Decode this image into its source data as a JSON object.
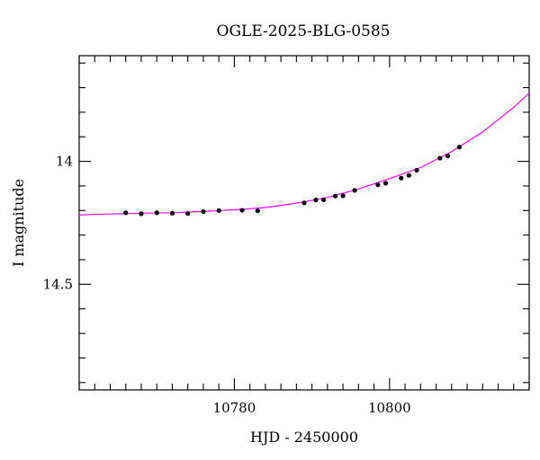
{
  "chart_data": {
    "type": "scatter",
    "title": "OGLE-2025-BLG-0585",
    "xlabel": "HJD - 2450000",
    "ylabel": "I magnitude",
    "xlim": [
      10760,
      10818
    ],
    "ylim": [
      14.93,
      13.57
    ],
    "y_inverted": true,
    "x_ticks": [
      10780,
      10800
    ],
    "y_ticks": [
      14,
      14.5
    ],
    "x_tick_labels": [
      "10780",
      "10800"
    ],
    "y_tick_labels": [
      "14",
      "14.5"
    ],
    "x_minor_step": 2,
    "y_minor_step": 0.1,
    "grid": false,
    "legend": "none",
    "series": [
      {
        "kind": "points",
        "color": "#000000",
        "x": [
          10766.0,
          10768.0,
          10770.0,
          10772.0,
          10774.0,
          10776.0,
          10778.0,
          10781.0,
          10783.0,
          10789.0,
          10790.5,
          10791.5,
          10793.0,
          10794.0,
          10795.5,
          10798.5,
          10799.5,
          10801.5,
          10802.5,
          10803.5,
          10806.5,
          10807.5,
          10809.0
        ],
        "y": [
          14.209,
          14.213,
          14.209,
          14.211,
          14.212,
          14.204,
          14.2,
          14.199,
          14.201,
          14.169,
          14.157,
          14.156,
          14.141,
          14.14,
          14.118,
          14.095,
          14.089,
          14.068,
          14.057,
          14.036,
          13.987,
          13.978,
          13.942
        ]
      },
      {
        "kind": "model",
        "color": "#ff00ff",
        "x": [
          10760,
          10764,
          10768,
          10772,
          10776,
          10780,
          10784,
          10788,
          10792,
          10796,
          10800,
          10804,
          10808,
          10812,
          10816,
          10818
        ],
        "y": [
          14.218,
          14.214,
          14.211,
          14.209,
          14.204,
          14.197,
          14.188,
          14.17,
          14.147,
          14.112,
          14.07,
          14.025,
          13.96,
          13.88,
          13.78,
          13.722
        ]
      }
    ]
  }
}
